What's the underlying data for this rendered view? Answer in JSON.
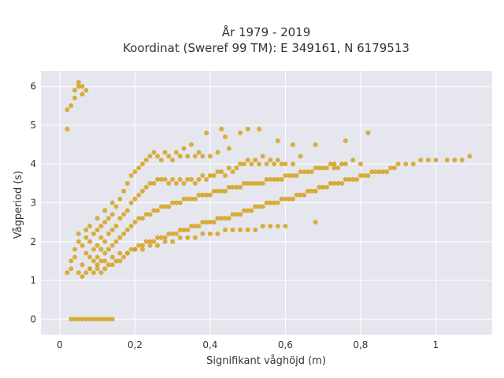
{
  "chart_data": {
    "type": "scatter",
    "title_line1": "År 1979 - 2019",
    "title_line2": "Koordinat (Sweref 99 TM): E 349161, N 6179513",
    "xlabel": "Signifikant våghöjd (m)",
    "ylabel": "Vågperiod (s)",
    "xlim": [
      -0.05,
      1.15
    ],
    "ylim": [
      -0.4,
      6.4
    ],
    "grid": true,
    "marker_color": "#D4A21C",
    "background_color": "#E6E6EF",
    "x_ticks": [
      {
        "value": 0,
        "label": "0"
      },
      {
        "value": 0.2,
        "label": "0,2"
      },
      {
        "value": 0.4,
        "label": "0,4"
      },
      {
        "value": 0.6,
        "label": "0,6"
      },
      {
        "value": 0.8,
        "label": "0,8"
      },
      {
        "value": 1.0,
        "label": "1"
      }
    ],
    "y_ticks": [
      {
        "value": 0,
        "label": "0"
      },
      {
        "value": 1,
        "label": "1"
      },
      {
        "value": 2,
        "label": "2"
      },
      {
        "value": 3,
        "label": "3"
      },
      {
        "value": 4,
        "label": "4"
      },
      {
        "value": 5,
        "label": "5"
      },
      {
        "value": 6,
        "label": "6"
      }
    ],
    "points": [
      [
        0.02,
        1.2
      ],
      [
        0.03,
        1.3
      ],
      [
        0.03,
        1.5
      ],
      [
        0.04,
        1.6
      ],
      [
        0.04,
        1.8
      ],
      [
        0.05,
        2.0
      ],
      [
        0.05,
        2.2
      ],
      [
        0.06,
        1.1
      ],
      [
        0.06,
        1.4
      ],
      [
        0.06,
        1.9
      ],
      [
        0.07,
        1.2
      ],
      [
        0.07,
        1.7
      ],
      [
        0.07,
        2.1
      ],
      [
        0.07,
        2.3
      ],
      [
        0.08,
        1.3
      ],
      [
        0.08,
        1.6
      ],
      [
        0.08,
        2.0
      ],
      [
        0.08,
        2.4
      ],
      [
        0.09,
        1.2
      ],
      [
        0.09,
        1.5
      ],
      [
        0.09,
        1.8
      ],
      [
        0.09,
        2.2
      ],
      [
        0.1,
        1.3
      ],
      [
        0.1,
        1.6
      ],
      [
        0.1,
        1.9
      ],
      [
        0.1,
        2.3
      ],
      [
        0.1,
        2.6
      ],
      [
        0.11,
        1.2
      ],
      [
        0.11,
        1.5
      ],
      [
        0.11,
        1.8
      ],
      [
        0.11,
        2.1
      ],
      [
        0.11,
        2.4
      ],
      [
        0.12,
        1.3
      ],
      [
        0.12,
        1.7
      ],
      [
        0.12,
        2.0
      ],
      [
        0.12,
        2.5
      ],
      [
        0.12,
        2.8
      ],
      [
        0.13,
        1.4
      ],
      [
        0.13,
        1.8
      ],
      [
        0.13,
        2.2
      ],
      [
        0.13,
        2.6
      ],
      [
        0.14,
        1.4
      ],
      [
        0.14,
        1.9
      ],
      [
        0.14,
        2.3
      ],
      [
        0.14,
        2.7
      ],
      [
        0.14,
        3.0
      ],
      [
        0.15,
        1.5
      ],
      [
        0.15,
        2.0
      ],
      [
        0.15,
        2.4
      ],
      [
        0.15,
        2.9
      ],
      [
        0.16,
        1.5
      ],
      [
        0.16,
        2.1
      ],
      [
        0.16,
        2.6
      ],
      [
        0.16,
        3.1
      ],
      [
        0.17,
        1.6
      ],
      [
        0.17,
        2.2
      ],
      [
        0.17,
        2.7
      ],
      [
        0.17,
        3.3
      ],
      [
        0.18,
        1.7
      ],
      [
        0.18,
        2.3
      ],
      [
        0.18,
        2.8
      ],
      [
        0.18,
        3.5
      ],
      [
        0.19,
        1.8
      ],
      [
        0.19,
        2.4
      ],
      [
        0.19,
        3.0
      ],
      [
        0.19,
        3.7
      ],
      [
        0.2,
        1.8
      ],
      [
        0.2,
        2.5
      ],
      [
        0.2,
        3.1
      ],
      [
        0.2,
        3.8
      ],
      [
        0.21,
        1.9
      ],
      [
        0.21,
        2.6
      ],
      [
        0.21,
        3.2
      ],
      [
        0.21,
        3.9
      ],
      [
        0.22,
        1.9
      ],
      [
        0.22,
        2.6
      ],
      [
        0.22,
        3.3
      ],
      [
        0.22,
        4.0
      ],
      [
        0.23,
        2.0
      ],
      [
        0.23,
        2.7
      ],
      [
        0.23,
        3.4
      ],
      [
        0.23,
        4.1
      ],
      [
        0.24,
        2.0
      ],
      [
        0.24,
        2.7
      ],
      [
        0.24,
        3.5
      ],
      [
        0.24,
        4.2
      ],
      [
        0.25,
        2.0
      ],
      [
        0.25,
        2.8
      ],
      [
        0.25,
        3.5
      ],
      [
        0.25,
        4.3
      ],
      [
        0.26,
        2.1
      ],
      [
        0.26,
        2.8
      ],
      [
        0.26,
        3.6
      ],
      [
        0.26,
        4.2
      ],
      [
        0.27,
        2.1
      ],
      [
        0.27,
        2.9
      ],
      [
        0.27,
        3.6
      ],
      [
        0.27,
        4.1
      ],
      [
        0.28,
        2.1
      ],
      [
        0.28,
        2.9
      ],
      [
        0.28,
        3.6
      ],
      [
        0.28,
        4.3
      ],
      [
        0.29,
        2.2
      ],
      [
        0.29,
        2.9
      ],
      [
        0.29,
        3.5
      ],
      [
        0.29,
        4.2
      ],
      [
        0.3,
        2.2
      ],
      [
        0.3,
        3.0
      ],
      [
        0.3,
        3.6
      ],
      [
        0.3,
        4.1
      ],
      [
        0.31,
        2.2
      ],
      [
        0.31,
        3.0
      ],
      [
        0.31,
        3.5
      ],
      [
        0.31,
        4.3
      ],
      [
        0.32,
        2.3
      ],
      [
        0.32,
        3.0
      ],
      [
        0.32,
        3.6
      ],
      [
        0.32,
        4.2
      ],
      [
        0.33,
        2.3
      ],
      [
        0.33,
        3.1
      ],
      [
        0.33,
        3.5
      ],
      [
        0.33,
        4.4
      ],
      [
        0.34,
        2.3
      ],
      [
        0.34,
        3.1
      ],
      [
        0.34,
        3.6
      ],
      [
        0.34,
        4.2
      ],
      [
        0.35,
        2.4
      ],
      [
        0.35,
        3.1
      ],
      [
        0.35,
        3.6
      ],
      [
        0.35,
        4.5
      ],
      [
        0.36,
        2.4
      ],
      [
        0.36,
        3.1
      ],
      [
        0.36,
        3.5
      ],
      [
        0.36,
        4.2
      ],
      [
        0.37,
        2.4
      ],
      [
        0.37,
        3.2
      ],
      [
        0.37,
        3.6
      ],
      [
        0.37,
        4.3
      ],
      [
        0.38,
        2.5
      ],
      [
        0.38,
        3.2
      ],
      [
        0.38,
        3.7
      ],
      [
        0.38,
        4.2
      ],
      [
        0.39,
        2.5
      ],
      [
        0.39,
        3.2
      ],
      [
        0.39,
        3.6
      ],
      [
        0.4,
        2.5
      ],
      [
        0.4,
        3.2
      ],
      [
        0.4,
        3.7
      ],
      [
        0.4,
        4.2
      ],
      [
        0.41,
        2.5
      ],
      [
        0.41,
        3.3
      ],
      [
        0.41,
        3.7
      ],
      [
        0.42,
        2.6
      ],
      [
        0.42,
        3.3
      ],
      [
        0.42,
        3.8
      ],
      [
        0.42,
        4.3
      ],
      [
        0.43,
        2.6
      ],
      [
        0.43,
        3.3
      ],
      [
        0.43,
        3.8
      ],
      [
        0.44,
        2.6
      ],
      [
        0.44,
        3.3
      ],
      [
        0.44,
        3.7
      ],
      [
        0.45,
        2.6
      ],
      [
        0.45,
        3.4
      ],
      [
        0.45,
        3.9
      ],
      [
        0.45,
        4.4
      ],
      [
        0.46,
        2.7
      ],
      [
        0.46,
        3.4
      ],
      [
        0.46,
        3.8
      ],
      [
        0.47,
        2.7
      ],
      [
        0.47,
        3.4
      ],
      [
        0.47,
        3.9
      ],
      [
        0.48,
        2.7
      ],
      [
        0.48,
        3.4
      ],
      [
        0.48,
        4.0
      ],
      [
        0.48,
        4.8
      ],
      [
        0.49,
        2.8
      ],
      [
        0.49,
        3.5
      ],
      [
        0.49,
        4.0
      ],
      [
        0.5,
        2.8
      ],
      [
        0.5,
        3.5
      ],
      [
        0.5,
        4.1
      ],
      [
        0.5,
        4.9
      ],
      [
        0.51,
        2.8
      ],
      [
        0.51,
        3.5
      ],
      [
        0.51,
        4.0
      ],
      [
        0.52,
        2.9
      ],
      [
        0.52,
        3.5
      ],
      [
        0.52,
        4.1
      ],
      [
        0.53,
        2.9
      ],
      [
        0.53,
        3.5
      ],
      [
        0.53,
        4.0
      ],
      [
        0.53,
        4.9
      ],
      [
        0.54,
        2.9
      ],
      [
        0.54,
        3.5
      ],
      [
        0.54,
        4.2
      ],
      [
        0.55,
        3.0
      ],
      [
        0.55,
        3.6
      ],
      [
        0.55,
        4.0
      ],
      [
        0.56,
        3.0
      ],
      [
        0.56,
        3.6
      ],
      [
        0.56,
        4.1
      ],
      [
        0.57,
        3.0
      ],
      [
        0.57,
        3.6
      ],
      [
        0.57,
        4.0
      ],
      [
        0.58,
        3.0
      ],
      [
        0.58,
        3.6
      ],
      [
        0.58,
        4.1
      ],
      [
        0.59,
        3.1
      ],
      [
        0.59,
        3.6
      ],
      [
        0.59,
        4.0
      ],
      [
        0.6,
        3.1
      ],
      [
        0.6,
        3.7
      ],
      [
        0.6,
        4.0
      ],
      [
        0.61,
        3.1
      ],
      [
        0.61,
        3.7
      ],
      [
        0.62,
        3.1
      ],
      [
        0.62,
        3.7
      ],
      [
        0.62,
        4.0
      ],
      [
        0.63,
        3.2
      ],
      [
        0.63,
        3.7
      ],
      [
        0.64,
        3.2
      ],
      [
        0.64,
        3.8
      ],
      [
        0.64,
        4.2
      ],
      [
        0.65,
        3.2
      ],
      [
        0.65,
        3.8
      ],
      [
        0.66,
        3.3
      ],
      [
        0.66,
        3.8
      ],
      [
        0.67,
        3.3
      ],
      [
        0.67,
        3.8
      ],
      [
        0.68,
        3.3
      ],
      [
        0.68,
        3.9
      ],
      [
        0.69,
        3.4
      ],
      [
        0.69,
        3.9
      ],
      [
        0.7,
        3.4
      ],
      [
        0.7,
        3.9
      ],
      [
        0.71,
        3.4
      ],
      [
        0.71,
        3.9
      ],
      [
        0.72,
        3.5
      ],
      [
        0.72,
        4.0
      ],
      [
        0.73,
        3.5
      ],
      [
        0.73,
        4.0
      ],
      [
        0.74,
        3.5
      ],
      [
        0.74,
        3.9
      ],
      [
        0.75,
        3.5
      ],
      [
        0.75,
        4.0
      ],
      [
        0.76,
        3.6
      ],
      [
        0.76,
        4.0
      ],
      [
        0.77,
        3.6
      ],
      [
        0.78,
        3.6
      ],
      [
        0.78,
        4.1
      ],
      [
        0.79,
        3.6
      ],
      [
        0.8,
        3.7
      ],
      [
        0.8,
        4.0
      ],
      [
        0.81,
        3.7
      ],
      [
        0.82,
        3.7
      ],
      [
        0.83,
        3.8
      ],
      [
        0.84,
        3.8
      ],
      [
        0.85,
        3.8
      ],
      [
        0.86,
        3.8
      ],
      [
        0.87,
        3.8
      ],
      [
        0.88,
        3.9
      ],
      [
        0.89,
        3.9
      ],
      [
        0.9,
        4.0
      ],
      [
        0.92,
        4.0
      ],
      [
        0.94,
        4.0
      ],
      [
        0.96,
        4.1
      ],
      [
        0.98,
        4.1
      ],
      [
        1.0,
        4.1
      ],
      [
        1.03,
        4.1
      ],
      [
        1.05,
        4.1
      ],
      [
        1.07,
        4.1
      ],
      [
        1.09,
        4.2
      ],
      [
        0.68,
        2.5
      ],
      [
        0.73,
        3.9
      ],
      [
        0.43,
        4.9
      ],
      [
        0.44,
        4.7
      ],
      [
        0.39,
        4.8
      ],
      [
        0.58,
        4.6
      ],
      [
        0.62,
        4.5
      ],
      [
        0.68,
        4.5
      ],
      [
        0.76,
        4.6
      ],
      [
        0.82,
        4.8
      ],
      [
        0.05,
        1.2
      ],
      [
        0.08,
        1.3
      ],
      [
        0.1,
        1.4
      ],
      [
        0.12,
        1.5
      ],
      [
        0.14,
        1.6
      ],
      [
        0.16,
        1.7
      ],
      [
        0.18,
        1.7
      ],
      [
        0.2,
        1.8
      ],
      [
        0.22,
        1.8
      ],
      [
        0.24,
        1.9
      ],
      [
        0.26,
        1.9
      ],
      [
        0.28,
        2.0
      ],
      [
        0.3,
        2.0
      ],
      [
        0.32,
        2.1
      ],
      [
        0.34,
        2.1
      ],
      [
        0.36,
        2.1
      ],
      [
        0.38,
        2.2
      ],
      [
        0.4,
        2.2
      ],
      [
        0.42,
        2.2
      ],
      [
        0.44,
        2.3
      ],
      [
        0.46,
        2.3
      ],
      [
        0.48,
        2.3
      ],
      [
        0.5,
        2.3
      ],
      [
        0.52,
        2.3
      ],
      [
        0.54,
        2.4
      ],
      [
        0.56,
        2.4
      ],
      [
        0.58,
        2.4
      ],
      [
        0.6,
        2.4
      ],
      [
        0.02,
        5.4
      ],
      [
        0.03,
        5.5
      ],
      [
        0.04,
        5.7
      ],
      [
        0.04,
        5.9
      ],
      [
        0.05,
        6.0
      ],
      [
        0.05,
        6.1
      ],
      [
        0.06,
        5.8
      ],
      [
        0.06,
        6.0
      ],
      [
        0.07,
        5.9
      ],
      [
        0.02,
        4.9
      ],
      [
        0.03,
        0
      ],
      [
        0.04,
        0
      ],
      [
        0.05,
        0
      ],
      [
        0.06,
        0
      ],
      [
        0.07,
        0
      ],
      [
        0.08,
        0
      ],
      [
        0.09,
        0
      ],
      [
        0.1,
        0
      ],
      [
        0.11,
        0
      ],
      [
        0.12,
        0
      ],
      [
        0.13,
        0
      ],
      [
        0.14,
        0
      ]
    ]
  }
}
